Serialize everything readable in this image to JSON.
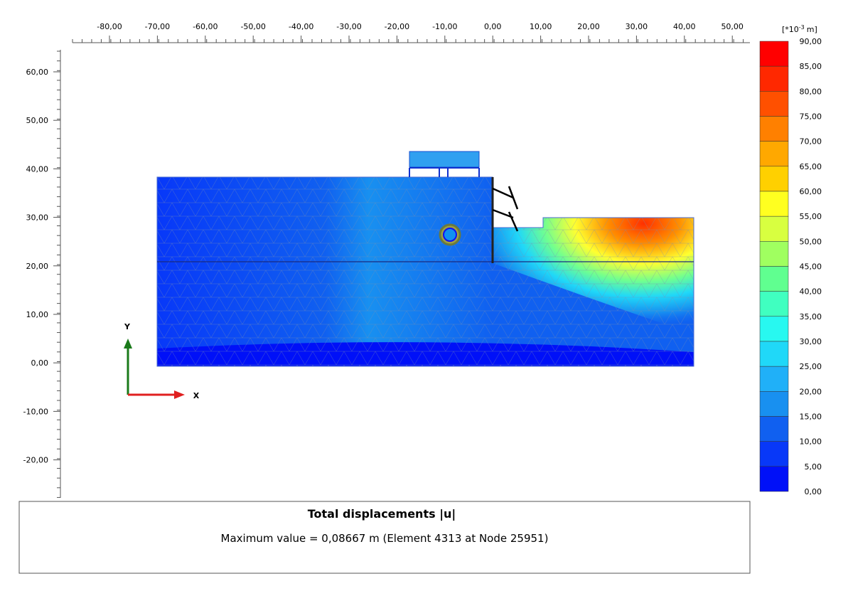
{
  "x_ruler": {
    "labels": [
      "-80,00",
      "-70,00",
      "-60,00",
      "-50,00",
      "-40,00",
      "-30,00",
      "-20,00",
      "-10,00",
      "0,00",
      "10,00",
      "20,00",
      "30,00",
      "40,00",
      "50,00"
    ]
  },
  "y_ruler": {
    "labels": [
      "60,00",
      "50,00",
      "40,00",
      "30,00",
      "20,00",
      "10,00",
      "0,00",
      "-10,00",
      "-20,00"
    ]
  },
  "axes": {
    "x": "X",
    "y": "Y"
  },
  "legend": {
    "unit_base": "[*10",
    "unit_exp": "-3",
    "unit_suffix": "m]",
    "labels": [
      "90,00",
      "85,00",
      "80,00",
      "75,00",
      "70,00",
      "65,00",
      "60,00",
      "55,00",
      "50,00",
      "45,00",
      "40,00",
      "35,00",
      "30,00",
      "25,00",
      "20,00",
      "15,00",
      "10,00",
      "5,00",
      "0,00"
    ],
    "colors": [
      "#ff0000",
      "#ff2800",
      "#ff5000",
      "#ff8000",
      "#ffa800",
      "#ffd000",
      "#ffff20",
      "#d8ff40",
      "#a0ff60",
      "#60ff90",
      "#40ffc0",
      "#28f8f0",
      "#20d8f8",
      "#20b0f8",
      "#1890f0",
      "#1060f0",
      "#0838f8",
      "#0010f8"
    ]
  },
  "caption": {
    "title": "Total displacements |u|",
    "text": "Maximum value = 0,08667 m (Element 4313 at Node 25951)"
  }
}
